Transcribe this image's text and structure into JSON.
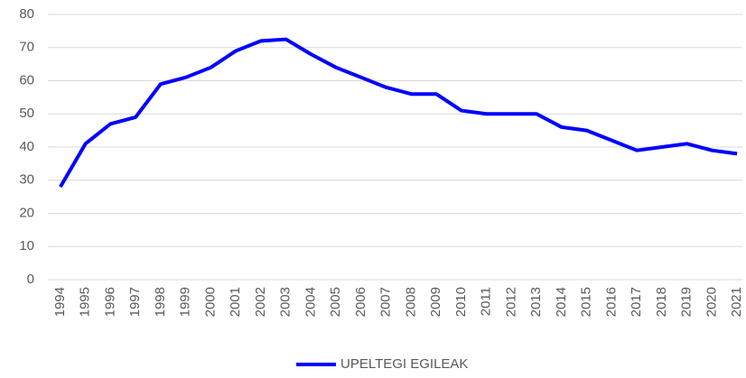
{
  "chart_data": {
    "type": "line",
    "categories": [
      "1994",
      "1995",
      "1996",
      "1997",
      "1998",
      "1999",
      "2000",
      "2001",
      "2002",
      "2003",
      "2004",
      "2005",
      "2006",
      "2007",
      "2008",
      "2009",
      "2010",
      "2011",
      "2012",
      "2013",
      "2014",
      "2015",
      "2016",
      "2017",
      "2018",
      "2019",
      "2020",
      "2021"
    ],
    "series": [
      {
        "name": "UPELTEGI EGILEAK",
        "color": "#0000ff",
        "values": [
          28,
          41,
          47,
          49,
          59,
          61,
          64,
          69,
          72,
          72.5,
          68,
          64,
          61,
          58,
          56,
          56,
          51,
          50,
          50,
          50,
          46,
          45,
          42,
          39,
          40,
          41,
          39,
          38
        ]
      }
    ],
    "ylim": [
      0,
      80
    ],
    "yticks": [
      0,
      10,
      20,
      30,
      40,
      50,
      60,
      70,
      80
    ],
    "grid": true,
    "legend": "bottom"
  }
}
